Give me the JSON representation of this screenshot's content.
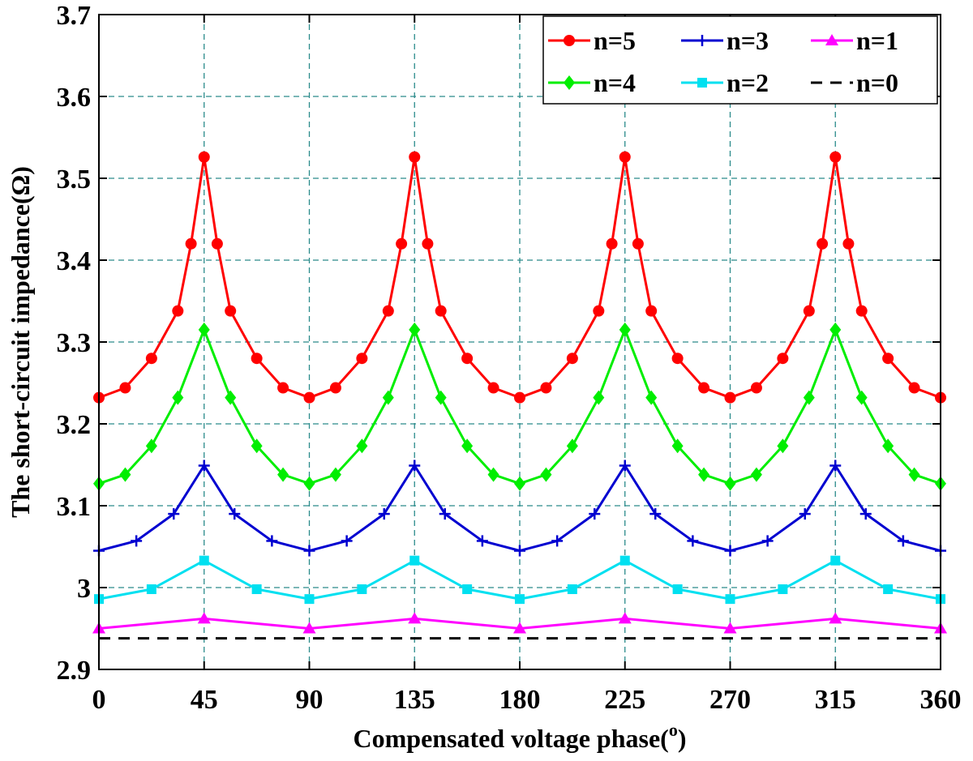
{
  "chart_data": {
    "type": "line",
    "xlabel_main": "Compensated voltage phase(",
    "xlabel_sup": "o",
    "xlabel_close": ")",
    "ylabel": "The short-circuit impedance(Ω)",
    "xlim": [
      0,
      360
    ],
    "ylim": [
      2.9,
      3.7
    ],
    "x_ticks": [
      "0",
      "45",
      "90",
      "135",
      "180",
      "225",
      "270",
      "315",
      "360"
    ],
    "y_ticks": [
      "2.9",
      "3",
      "3.1",
      "3.2",
      "3.3",
      "3.4",
      "3.5",
      "3.6",
      "3.7"
    ],
    "grid": true,
    "legend_placement": "top-right",
    "series": [
      {
        "name": "n=5",
        "color": "#ff0000",
        "marker": "circle",
        "x": [
          0,
          11.25,
          22.5,
          33.75,
          39.4,
          45,
          50.6,
          56.25,
          67.5,
          78.75,
          90,
          101.25,
          112.5,
          123.75,
          129.4,
          135,
          140.6,
          146.25,
          157.5,
          168.75,
          180,
          191.25,
          202.5,
          213.75,
          219.4,
          225,
          230.6,
          236.25,
          247.5,
          258.75,
          270,
          281.25,
          292.5,
          303.75,
          309.4,
          315,
          320.6,
          326.25,
          337.5,
          348.75,
          360
        ],
        "y": [
          3.232,
          3.244,
          3.28,
          3.338,
          3.42,
          3.526,
          3.42,
          3.338,
          3.28,
          3.244,
          3.232,
          3.244,
          3.28,
          3.338,
          3.42,
          3.526,
          3.42,
          3.338,
          3.28,
          3.244,
          3.232,
          3.244,
          3.28,
          3.338,
          3.42,
          3.526,
          3.42,
          3.338,
          3.28,
          3.244,
          3.232,
          3.244,
          3.28,
          3.338,
          3.42,
          3.526,
          3.42,
          3.338,
          3.28,
          3.244,
          3.232
        ]
      },
      {
        "name": "n=3",
        "color": "#0000d0",
        "marker": "plus",
        "x": [
          0,
          16,
          32,
          45,
          58,
          74,
          90,
          106,
          122,
          135,
          148,
          164,
          180,
          196,
          212,
          225,
          238,
          254,
          270,
          286,
          302,
          315,
          328,
          344,
          360
        ],
        "y": [
          3.045,
          3.057,
          3.09,
          3.149,
          3.09,
          3.057,
          3.045,
          3.057,
          3.09,
          3.149,
          3.09,
          3.057,
          3.045,
          3.057,
          3.09,
          3.149,
          3.09,
          3.057,
          3.045,
          3.057,
          3.09,
          3.149,
          3.09,
          3.057,
          3.045
        ]
      },
      {
        "name": "n=1",
        "color": "#ff00ff",
        "marker": "triangle",
        "x": [
          0,
          45,
          90,
          135,
          180,
          225,
          270,
          315,
          360
        ],
        "y": [
          2.95,
          2.962,
          2.95,
          2.962,
          2.95,
          2.962,
          2.95,
          2.962,
          2.95
        ]
      },
      {
        "name": "n=4",
        "color": "#00ee00",
        "marker": "diamond",
        "x": [
          0,
          11.25,
          22.5,
          33.75,
          45,
          56.25,
          67.5,
          78.75,
          90,
          101.25,
          112.5,
          123.75,
          135,
          146.25,
          157.5,
          168.75,
          180,
          191.25,
          202.5,
          213.75,
          225,
          236.25,
          247.5,
          258.75,
          270,
          281.25,
          292.5,
          303.75,
          315,
          326.25,
          337.5,
          348.75,
          360
        ],
        "y": [
          3.127,
          3.138,
          3.173,
          3.232,
          3.315,
          3.232,
          3.173,
          3.138,
          3.127,
          3.138,
          3.173,
          3.232,
          3.315,
          3.232,
          3.173,
          3.138,
          3.127,
          3.138,
          3.173,
          3.232,
          3.315,
          3.232,
          3.173,
          3.138,
          3.127,
          3.138,
          3.173,
          3.232,
          3.315,
          3.232,
          3.173,
          3.138,
          3.127
        ]
      },
      {
        "name": "n=2",
        "color": "#00e0f0",
        "marker": "square",
        "x": [
          0,
          22.5,
          45,
          67.5,
          90,
          112.5,
          135,
          157.5,
          180,
          202.5,
          225,
          247.5,
          270,
          292.5,
          315,
          337.5,
          360
        ],
        "y": [
          2.986,
          2.998,
          3.033,
          2.998,
          2.986,
          2.998,
          3.033,
          2.998,
          2.986,
          2.998,
          3.033,
          2.998,
          2.986,
          2.998,
          3.033,
          2.998,
          2.986
        ]
      },
      {
        "name": "n=0",
        "color": "#000000",
        "marker": "none",
        "dash": true,
        "x": [
          0,
          360
        ],
        "y": [
          2.938,
          2.938
        ]
      }
    ]
  }
}
